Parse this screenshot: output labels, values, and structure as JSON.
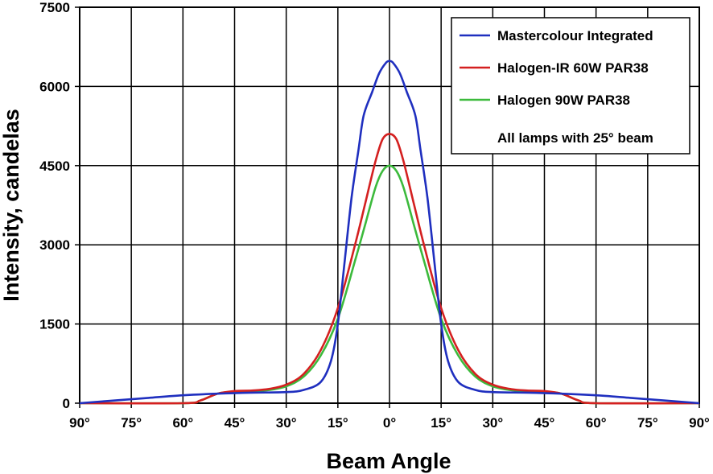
{
  "chart_data": {
    "type": "line",
    "xlabel": "Beam Angle",
    "ylabel": "Intensity, candelas",
    "xlim": [
      -90,
      90
    ],
    "ylim": [
      0,
      7500
    ],
    "grid": true,
    "legend_position": "top-right",
    "x_ticks": [
      -90,
      -75,
      -60,
      -45,
      -30,
      -15,
      0,
      15,
      30,
      45,
      60,
      75,
      90
    ],
    "x_tick_labels": [
      "90°",
      "75°",
      "60°",
      "45°",
      "30°",
      "15°",
      "0°",
      "15°",
      "30°",
      "45°",
      "60°",
      "75°",
      "90°"
    ],
    "y_ticks": [
      0,
      1500,
      3000,
      4500,
      6000,
      7500
    ],
    "y_tick_labels": [
      "0",
      "1500",
      "3000",
      "4500",
      "6000",
      "7500"
    ],
    "legend_note": "All lamps with 25° beam",
    "series": [
      {
        "name": "Mastercolour Integrated",
        "color": "#1f2fbf",
        "points": [
          [
            -90,
            0
          ],
          [
            -80,
            50
          ],
          [
            -70,
            100
          ],
          [
            -60,
            150
          ],
          [
            -50,
            180
          ],
          [
            -40,
            200
          ],
          [
            -30,
            210
          ],
          [
            -25,
            250
          ],
          [
            -20,
            400
          ],
          [
            -17,
            800
          ],
          [
            -15,
            1500
          ],
          [
            -13,
            2700
          ],
          [
            -11,
            3900
          ],
          [
            -9,
            4800
          ],
          [
            -7.5,
            5450
          ],
          [
            -5,
            5900
          ],
          [
            -3,
            6250
          ],
          [
            -1,
            6450
          ],
          [
            0,
            6480
          ],
          [
            1,
            6450
          ],
          [
            3,
            6250
          ],
          [
            5,
            5900
          ],
          [
            7.5,
            5450
          ],
          [
            9,
            4800
          ],
          [
            11,
            3900
          ],
          [
            13,
            2700
          ],
          [
            15,
            1500
          ],
          [
            17,
            800
          ],
          [
            20,
            400
          ],
          [
            25,
            250
          ],
          [
            30,
            210
          ],
          [
            40,
            200
          ],
          [
            50,
            180
          ],
          [
            60,
            150
          ],
          [
            70,
            100
          ],
          [
            80,
            50
          ],
          [
            90,
            0
          ]
        ]
      },
      {
        "name": "Halogen-IR 60W PAR38",
        "color": "#d42020",
        "points": [
          [
            -90,
            0
          ],
          [
            -60,
            0
          ],
          [
            -55,
            50
          ],
          [
            -50,
            180
          ],
          [
            -45,
            230
          ],
          [
            -40,
            240
          ],
          [
            -35,
            270
          ],
          [
            -30,
            350
          ],
          [
            -25,
            550
          ],
          [
            -20,
            1000
          ],
          [
            -15,
            1800
          ],
          [
            -10,
            3000
          ],
          [
            -7,
            3800
          ],
          [
            -4,
            4600
          ],
          [
            -2,
            5000
          ],
          [
            0,
            5100
          ],
          [
            2,
            5000
          ],
          [
            4,
            4600
          ],
          [
            7,
            3800
          ],
          [
            10,
            3000
          ],
          [
            15,
            1800
          ],
          [
            20,
            1000
          ],
          [
            25,
            550
          ],
          [
            30,
            350
          ],
          [
            35,
            270
          ],
          [
            40,
            240
          ],
          [
            45,
            230
          ],
          [
            50,
            180
          ],
          [
            55,
            50
          ],
          [
            60,
            0
          ],
          [
            90,
            0
          ]
        ]
      },
      {
        "name": "Halogen 90W PAR38",
        "color": "#3cba3c",
        "points": [
          [
            -90,
            0
          ],
          [
            -60,
            0
          ],
          [
            -55,
            50
          ],
          [
            -50,
            180
          ],
          [
            -45,
            220
          ],
          [
            -40,
            230
          ],
          [
            -35,
            250
          ],
          [
            -30,
            320
          ],
          [
            -25,
            500
          ],
          [
            -20,
            900
          ],
          [
            -15,
            1600
          ],
          [
            -10,
            2700
          ],
          [
            -7,
            3400
          ],
          [
            -4,
            4100
          ],
          [
            -2,
            4400
          ],
          [
            0,
            4500
          ],
          [
            2,
            4400
          ],
          [
            4,
            4100
          ],
          [
            7,
            3400
          ],
          [
            10,
            2700
          ],
          [
            15,
            1600
          ],
          [
            20,
            900
          ],
          [
            25,
            500
          ],
          [
            30,
            320
          ],
          [
            35,
            250
          ],
          [
            40,
            230
          ],
          [
            45,
            220
          ],
          [
            50,
            180
          ],
          [
            55,
            50
          ],
          [
            60,
            0
          ],
          [
            90,
            0
          ]
        ]
      }
    ]
  }
}
